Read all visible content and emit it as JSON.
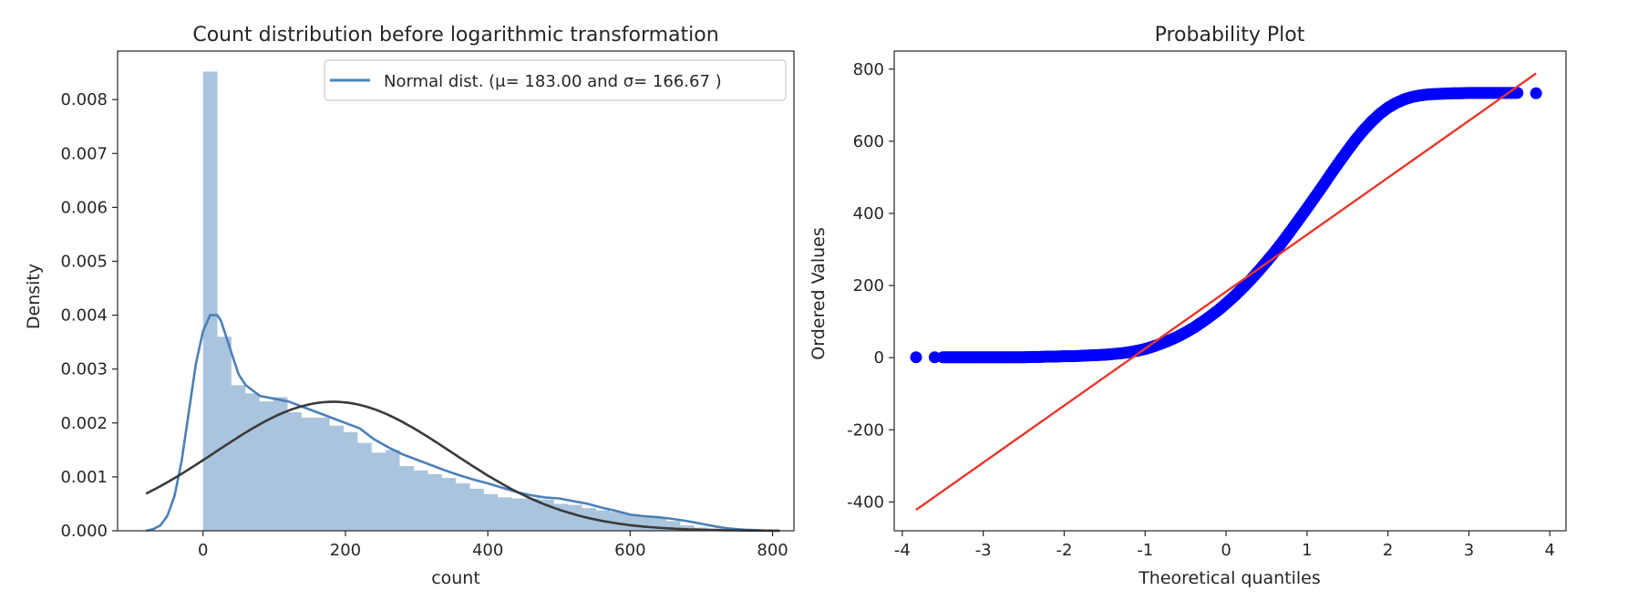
{
  "chart_data": [
    {
      "type": "histogram",
      "title": "Count distribution before logarithmic transformation",
      "xlabel": "count",
      "ylabel": "Density",
      "xlim": [
        -120,
        830
      ],
      "ylim": [
        0,
        0.0089
      ],
      "xticks": [
        0,
        200,
        400,
        600,
        800
      ],
      "yticks": [
        0.0,
        0.001,
        0.002,
        0.003,
        0.004,
        0.005,
        0.006,
        0.007,
        0.008
      ],
      "ytick_labels": [
        "0.000",
        "0.001",
        "0.002",
        "0.003",
        "0.004",
        "0.005",
        "0.006",
        "0.007",
        "0.008"
      ],
      "grid": false,
      "legend_position": "top-right",
      "legend_label": "Normal dist. (μ= 183.00 and σ= 166.67 )",
      "bins": {
        "x_start": 0,
        "width": 19.7,
        "values": [
          0.00852,
          0.0036,
          0.0027,
          0.00255,
          0.0024,
          0.00248,
          0.0022,
          0.0021,
          0.0021,
          0.00195,
          0.00183,
          0.00163,
          0.00145,
          0.0015,
          0.0012,
          0.00112,
          0.00105,
          0.00098,
          0.00088,
          0.00078,
          0.00068,
          0.00062,
          0.0006,
          0.0006,
          0.00058,
          0.0005,
          0.00048,
          0.00042,
          0.00038,
          0.00035,
          0.0003,
          0.00028,
          0.00024,
          0.00018,
          0.0001,
          6e-05,
          4e-05,
          2e-05,
          1e-05,
          5e-06,
          2e-06
        ]
      },
      "kde": {
        "x": [
          -80,
          -70,
          -60,
          -50,
          -40,
          -30,
          -20,
          -10,
          0,
          10,
          20,
          25,
          30,
          40,
          50,
          60,
          80,
          100,
          120,
          140,
          160,
          180,
          200,
          220,
          240,
          260,
          280,
          300,
          320,
          340,
          360,
          380,
          400,
          420,
          440,
          460,
          480,
          500,
          520,
          540,
          560,
          580,
          600,
          620,
          640,
          660,
          680,
          700,
          720,
          740,
          760,
          780,
          800
        ],
        "y": [
          0.0,
          3e-05,
          0.0001,
          0.00028,
          0.00065,
          0.0013,
          0.0022,
          0.0031,
          0.0037,
          0.004,
          0.004,
          0.0039,
          0.0037,
          0.0033,
          0.0029,
          0.0027,
          0.0025,
          0.00245,
          0.0024,
          0.0023,
          0.0022,
          0.0021,
          0.002,
          0.0019,
          0.0017,
          0.00155,
          0.00142,
          0.00132,
          0.00122,
          0.00112,
          0.00103,
          0.00095,
          0.00088,
          0.0008,
          0.00072,
          0.00066,
          0.00062,
          0.0006,
          0.00055,
          0.0005,
          0.00043,
          0.00037,
          0.0003,
          0.00027,
          0.00025,
          0.00022,
          0.00018,
          0.00013,
          8e-05,
          4e-05,
          2e-05,
          1e-05,
          0.0
        ]
      },
      "normal_fit": {
        "mu": 183.0,
        "sigma": 166.67,
        "x_range": [
          -80,
          810
        ]
      },
      "colors": {
        "bars": "#aac4de",
        "kde": "#4a80b8",
        "normal": "#3a3a3a"
      }
    },
    {
      "type": "scatter",
      "title": "Probability Plot",
      "xlabel": "Theoretical quantiles",
      "ylabel": "Ordered Values",
      "xlim": [
        -4.1,
        4.2
      ],
      "ylim": [
        -480,
        850
      ],
      "xticks": [
        -4,
        -3,
        -2,
        -1,
        0,
        1,
        2,
        3,
        4
      ],
      "yticks": [
        -400,
        -200,
        0,
        200,
        400,
        600,
        800
      ],
      "grid": false,
      "points": {
        "x": [
          -3.83,
          -3.6,
          -3.5,
          -3.4,
          -3.3,
          -3.2,
          -3.1,
          -3.0,
          -2.9,
          -2.8,
          -2.7,
          -2.6,
          -2.5,
          -2.4,
          -2.3,
          -2.2,
          -2.1,
          -2.0,
          -1.9,
          -1.8,
          -1.7,
          -1.6,
          -1.5,
          -1.4,
          -1.3,
          -1.2,
          -1.1,
          -1.0,
          -0.9,
          -0.8,
          -0.7,
          -0.6,
          -0.5,
          -0.4,
          -0.3,
          -0.2,
          -0.1,
          0.0,
          0.1,
          0.2,
          0.3,
          0.4,
          0.5,
          0.6,
          0.7,
          0.8,
          0.9,
          1.0,
          1.1,
          1.2,
          1.3,
          1.4,
          1.5,
          1.6,
          1.7,
          1.8,
          1.9,
          2.0,
          2.1,
          2.2,
          2.3,
          2.4,
          2.5,
          2.6,
          2.7,
          2.8,
          2.9,
          3.0,
          3.1,
          3.2,
          3.3,
          3.4,
          3.5,
          3.6,
          3.83
        ],
        "y": [
          1,
          1,
          1,
          1,
          1,
          1,
          1,
          1,
          1,
          1,
          1,
          1,
          1,
          2,
          2,
          3,
          3,
          4,
          4,
          5,
          6,
          7,
          8,
          10,
          12,
          15,
          19,
          24,
          31,
          39,
          48,
          58,
          70,
          83,
          98,
          114,
          131,
          150,
          170,
          192,
          215,
          240,
          266,
          293,
          322,
          352,
          383,
          414,
          446,
          478,
          511,
          543,
          574,
          604,
          631,
          655,
          676,
          693,
          706,
          716,
          723,
          727,
          730,
          731,
          732,
          733,
          733,
          734,
          734,
          734,
          734,
          734,
          734,
          734,
          733
        ]
      },
      "fit_line": {
        "x": [
          -3.83,
          3.83
        ],
        "y": [
          -422,
          788
        ]
      },
      "colors": {
        "points": "#0000ff",
        "line": "#e8372b"
      }
    }
  ]
}
